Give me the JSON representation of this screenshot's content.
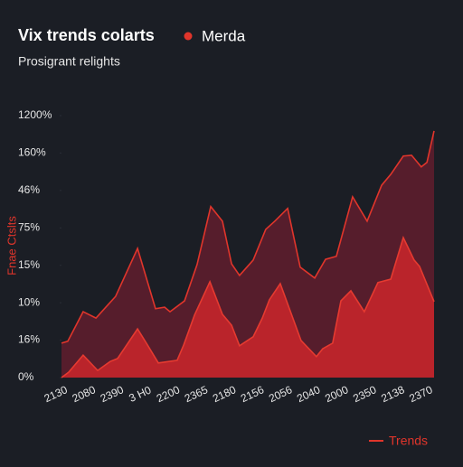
{
  "chart_data": {
    "type": "area",
    "title": "Vix trends colarts",
    "subtitle": "Prosigrant relights",
    "y_label": "Fnae Ctslts",
    "ytick_labels": [
      "0%",
      "16%",
      "10%",
      "15%",
      "75%",
      "46%",
      "160%",
      "1200%"
    ],
    "yticks": [
      0,
      1,
      2,
      3,
      4,
      5,
      6,
      7
    ],
    "ylim": [
      0,
      7
    ],
    "x_labels": [
      "2130",
      "2080",
      "2390",
      "3 H0",
      "2200",
      "2365",
      "2180",
      "2156",
      "2056",
      "2040",
      "2000",
      "2350",
      "2138",
      "2370"
    ],
    "xlim": [
      0,
      13.08
    ],
    "series": [
      {
        "name": "Merda",
        "color": "#e0352b",
        "fill": "#5a1e2c",
        "x": [
          0,
          0.22,
          0.76,
          1.21,
          1.65,
          1.9,
          2.67,
          3.3,
          3.62,
          3.81,
          4.32,
          4.76,
          5.24,
          5.65,
          5.97,
          6.25,
          6.73,
          7.17,
          7.49,
          7.94,
          8.38,
          8.89,
          9.27,
          9.65,
          10.22,
          10.73,
          11.24,
          11.56,
          12.0,
          12.29,
          12.63,
          12.83,
          13.08
        ],
        "values": [
          0.92,
          0.97,
          1.76,
          1.59,
          1.96,
          2.17,
          3.45,
          1.84,
          1.88,
          1.76,
          2.05,
          3.02,
          4.57,
          4.18,
          3.04,
          2.73,
          3.14,
          3.96,
          4.18,
          4.52,
          2.95,
          2.66,
          3.16,
          3.24,
          4.83,
          4.18,
          5.14,
          5.43,
          5.92,
          5.94,
          5.63,
          5.75,
          6.59
        ]
      },
      {
        "name": "Trends",
        "color": "#e53a30",
        "fill": "#c2252b",
        "x": [
          0,
          0.25,
          0.76,
          1.27,
          1.71,
          1.97,
          2.67,
          2.98,
          3.4,
          4.06,
          4.29,
          4.67,
          5.21,
          5.65,
          5.97,
          6.25,
          6.73,
          7.05,
          7.3,
          7.68,
          8.41,
          8.95,
          9.17,
          9.52,
          9.81,
          10.16,
          10.63,
          11.11,
          11.56,
          12.0,
          12.38,
          12.57,
          13.08
        ],
        "values": [
          0,
          0.14,
          0.6,
          0.19,
          0.43,
          0.51,
          1.3,
          0.92,
          0.39,
          0.46,
          0.87,
          1.67,
          2.56,
          1.69,
          1.4,
          0.85,
          1.09,
          1.59,
          2.08,
          2.51,
          0.99,
          0.56,
          0.77,
          0.92,
          2.05,
          2.32,
          1.76,
          2.54,
          2.63,
          3.74,
          3.14,
          2.97,
          2.03
        ]
      }
    ]
  }
}
